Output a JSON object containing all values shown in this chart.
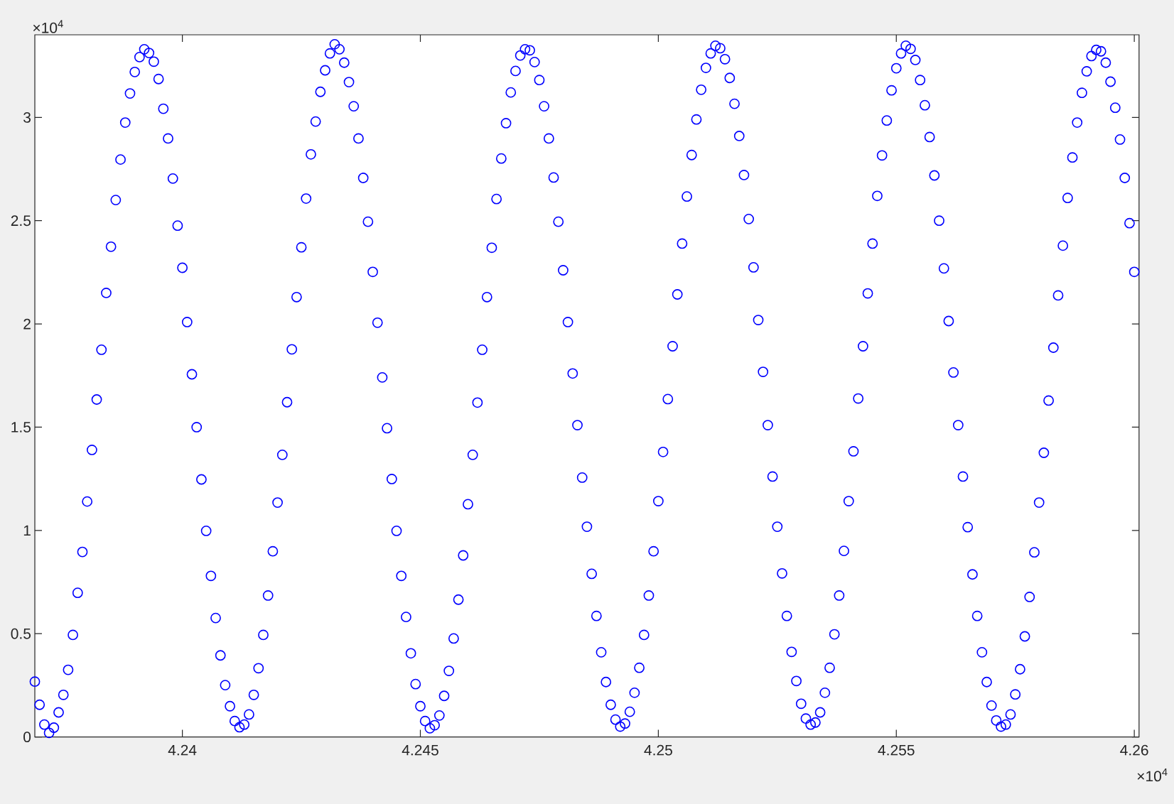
{
  "chart_data": {
    "type": "scatter",
    "color": "#0000ff",
    "marker": "circle",
    "xlim": [
      4.2369,
      4.2601
    ],
    "ylim": [
      0,
      3.4
    ],
    "xticks": [
      4.24,
      4.245,
      4.25,
      4.255,
      4.26
    ],
    "yticks": [
      0,
      0.5,
      1,
      1.5,
      2,
      2.5,
      3
    ],
    "annotations": [
      "×10$^{4}$",
      "×10$^{4}$"
    ],
    "x": [
      4.2369,
      4.237,
      4.2371,
      4.2372,
      4.2373,
      4.2374,
      4.2375,
      4.2376,
      4.2377,
      4.2378,
      4.2379,
      4.238,
      4.2381,
      4.2382,
      4.2383,
      4.2384,
      4.2385,
      4.2386,
      4.2387,
      4.2388,
      4.2389,
      4.239,
      4.2391,
      4.2392,
      4.2393,
      4.2394,
      4.2395,
      4.2396,
      4.2397,
      4.2398,
      4.2399,
      4.24,
      4.2401,
      4.2402,
      4.2403,
      4.2404,
      4.2405,
      4.2406,
      4.2407,
      4.2408,
      4.2409,
      4.241,
      4.2411,
      4.2412,
      4.2413,
      4.2414,
      4.2415,
      4.2416,
      4.2417,
      4.2418,
      4.2419,
      4.242,
      4.2421,
      4.2422,
      4.2423,
      4.2424,
      4.2425,
      4.2426,
      4.2427,
      4.2428,
      4.2429,
      4.243,
      4.2431,
      4.2432,
      4.2433,
      4.2434,
      4.2435,
      4.2436,
      4.2437,
      4.2438,
      4.2439,
      4.244,
      4.2441,
      4.2442,
      4.2443,
      4.2444,
      4.2445,
      4.2446,
      4.2447,
      4.2448,
      4.2449,
      4.245,
      4.2451,
      4.2452,
      4.2453,
      4.2454,
      4.2455,
      4.2456,
      4.2457,
      4.2458,
      4.2459,
      4.246,
      4.2461,
      4.2462,
      4.2463,
      4.2464,
      4.2465,
      4.2466,
      4.2467,
      4.2468,
      4.2469,
      4.247,
      4.2471,
      4.2472,
      4.2473,
      4.2474,
      4.2475,
      4.2476,
      4.2477,
      4.2478,
      4.2479,
      4.248,
      4.2481,
      4.2482,
      4.2483,
      4.2484,
      4.2485,
      4.2486,
      4.2487,
      4.2488,
      4.2489,
      4.249,
      4.2491,
      4.2492,
      4.2493,
      4.2494,
      4.2495,
      4.2496,
      4.2497,
      4.2498,
      4.2499,
      4.25,
      4.2501,
      4.2502,
      4.2503,
      4.2504,
      4.2505,
      4.2506,
      4.2507,
      4.2508,
      4.2509,
      4.251,
      4.2511,
      4.2512,
      4.2513,
      4.2514,
      4.2515,
      4.2516,
      4.2517,
      4.2518,
      4.2519,
      4.252,
      4.2521,
      4.2522,
      4.2523,
      4.2524,
      4.2525,
      4.2526,
      4.2527,
      4.2528,
      4.2529,
      4.253,
      4.2531,
      4.2532,
      4.2533,
      4.2534,
      4.2535,
      4.2536,
      4.2537,
      4.2538,
      4.2539,
      4.254,
      4.2541,
      4.2542,
      4.2543,
      4.2544,
      4.2545,
      4.2546,
      4.2547,
      4.2548,
      4.2549,
      4.255,
      4.2551,
      4.2552,
      4.2553,
      4.2554,
      4.2555,
      4.2556,
      4.2557,
      4.2558,
      4.2559,
      4.256,
      4.2561,
      4.2562,
      4.2563,
      4.2564,
      4.2565,
      4.2566,
      4.2567,
      4.2568,
      4.2569,
      4.257,
      4.2571,
      4.2572,
      4.2573,
      4.2574,
      4.2575,
      4.2576,
      4.2577,
      4.2578,
      4.2579,
      4.258,
      4.2581,
      4.2582,
      4.2583,
      4.2584,
      4.2585,
      4.2586,
      4.2587,
      4.2588,
      4.2589,
      4.259,
      4.2591,
      4.2592,
      4.2593,
      4.2594,
      4.2595,
      4.2596,
      4.2597,
      4.2598,
      4.2599,
      4.26
    ],
    "values": [
      0.268,
      0.156,
      0.06,
      0.02,
      0.045,
      0.119,
      0.204,
      0.325,
      0.494,
      0.698,
      0.896,
      1.14,
      1.39,
      1.634,
      1.875,
      2.15,
      2.374,
      2.6,
      2.796,
      2.975,
      3.116,
      3.22,
      3.292,
      3.33,
      3.312,
      3.27,
      3.186,
      3.042,
      2.898,
      2.704,
      2.476,
      2.272,
      2.009,
      1.756,
      1.5,
      1.247,
      0.998,
      0.78,
      0.576,
      0.395,
      0.251,
      0.149,
      0.077,
      0.047,
      0.06,
      0.109,
      0.204,
      0.333,
      0.494,
      0.685,
      0.899,
      1.135,
      1.366,
      1.621,
      1.877,
      2.13,
      2.371,
      2.607,
      2.821,
      2.98,
      3.124,
      3.228,
      3.31,
      3.354,
      3.33,
      3.265,
      3.171,
      3.054,
      2.898,
      2.707,
      2.495,
      2.252,
      2.006,
      1.741,
      1.495,
      1.249,
      0.998,
      0.78,
      0.581,
      0.405,
      0.256,
      0.149,
      0.077,
      0.042,
      0.057,
      0.104,
      0.199,
      0.32,
      0.477,
      0.665,
      0.879,
      1.127,
      1.366,
      1.619,
      1.875,
      2.13,
      2.369,
      2.605,
      2.801,
      2.972,
      3.121,
      3.225,
      3.3,
      3.33,
      3.325,
      3.268,
      3.181,
      3.054,
      2.898,
      2.709,
      2.495,
      2.26,
      2.009,
      1.76,
      1.51,
      1.256,
      1.018,
      0.79,
      0.586,
      0.41,
      0.266,
      0.156,
      0.084,
      0.05,
      0.065,
      0.122,
      0.214,
      0.335,
      0.494,
      0.685,
      0.899,
      1.142,
      1.38,
      1.636,
      1.892,
      2.143,
      2.389,
      2.617,
      2.818,
      2.99,
      3.134,
      3.24,
      3.31,
      3.347,
      3.335,
      3.282,
      3.191,
      3.066,
      2.91,
      2.721,
      2.508,
      2.274,
      2.019,
      1.768,
      1.51,
      1.261,
      1.018,
      0.792,
      0.586,
      0.412,
      0.271,
      0.161,
      0.089,
      0.06,
      0.07,
      0.119,
      0.214,
      0.335,
      0.497,
      0.685,
      0.901,
      1.142,
      1.383,
      1.639,
      1.892,
      2.148,
      2.389,
      2.62,
      2.816,
      2.985,
      3.131,
      3.238,
      3.31,
      3.347,
      3.332,
      3.278,
      3.181,
      3.059,
      2.905,
      2.719,
      2.5,
      2.269,
      2.014,
      1.765,
      1.51,
      1.261,
      1.016,
      0.787,
      0.586,
      0.41,
      0.266,
      0.152,
      0.08,
      0.05,
      0.06,
      0.109,
      0.206,
      0.328,
      0.487,
      0.678,
      0.894,
      1.135,
      1.376,
      1.629,
      1.885,
      2.138,
      2.379,
      2.61,
      2.806,
      2.975,
      3.119,
      3.223,
      3.297,
      3.327,
      3.32,
      3.265,
      3.173,
      3.047,
      2.893,
      2.707,
      2.488,
      2.252
    ]
  }
}
